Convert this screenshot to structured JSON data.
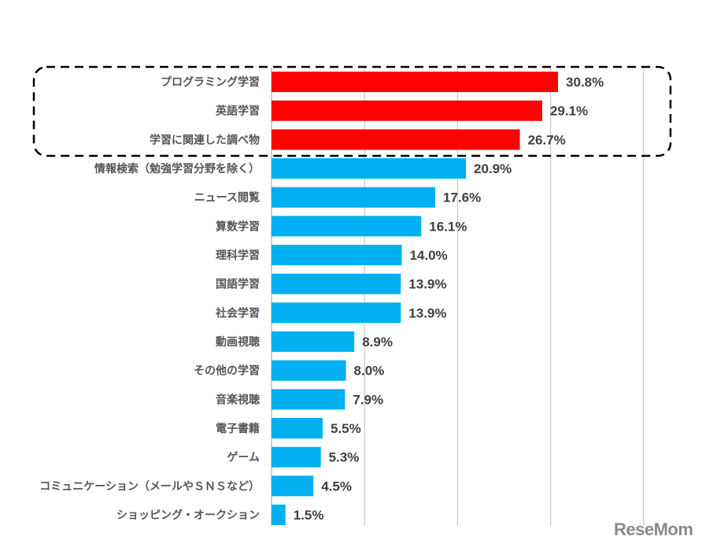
{
  "chart_data": {
    "type": "bar",
    "orientation": "horizontal",
    "categories": [
      "プログラミング学習",
      "英語学習",
      "学習に関連した調べ物",
      "情報検索（勉強学習分野を除く）",
      "ニュース閲覧",
      "算数学習",
      "理科学習",
      "国語学習",
      "社会学習",
      "動画視聴",
      "その他の学習",
      "音楽視聴",
      "電子書籍",
      "ゲーム",
      "コミュニケーション（メールやＳＮＳなど）",
      "ショッピング・オークション"
    ],
    "values": [
      30.8,
      29.1,
      26.7,
      20.9,
      17.6,
      16.1,
      14.0,
      13.9,
      13.9,
      8.9,
      8.0,
      7.9,
      5.5,
      5.3,
      4.5,
      1.5
    ],
    "value_labels": [
      "30.8%",
      "29.1%",
      "26.7%",
      "20.9%",
      "17.6%",
      "16.1%",
      "14.0%",
      "13.9%",
      "13.9%",
      "8.9%",
      "8.0%",
      "7.9%",
      "5.5%",
      "5.3%",
      "4.5%",
      "1.5%"
    ],
    "highlighted_count": 3,
    "xlim": [
      0,
      40
    ],
    "gridlines": [
      10,
      20,
      30,
      40
    ],
    "grid": true,
    "unit": "%",
    "title": "",
    "xlabel": "",
    "ylabel": ""
  },
  "colors": {
    "highlight": "#ff0000",
    "normal": "#00b0f0",
    "grid": "#c8c8c8"
  },
  "watermark": "ReseMom"
}
